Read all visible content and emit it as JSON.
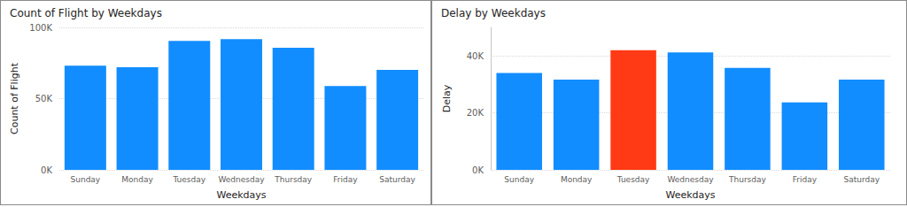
{
  "chart_data": [
    {
      "type": "bar",
      "title": "Count of Flight by Weekdays",
      "x_label": "Weekdays",
      "y_label": "Count of Flight",
      "categories": [
        "Sunday",
        "Monday",
        "Tuesday",
        "Wednesday",
        "Thursday",
        "Friday",
        "Saturday"
      ],
      "values": [
        73200,
        72000,
        90500,
        91700,
        85700,
        58900,
        70200
      ],
      "color": "#118dff",
      "ylim": [
        0,
        100000
      ],
      "yticks": [
        {
          "value": 0,
          "label": "0K"
        },
        {
          "value": 50000,
          "label": "50K"
        },
        {
          "value": 100000,
          "label": "100K"
        }
      ],
      "grid": true
    },
    {
      "type": "bar",
      "title": "Delay by Weekdays",
      "x_label": "Weekdays",
      "y_label": "Delay",
      "categories": [
        "Sunday",
        "Monday",
        "Tuesday",
        "Wednesday",
        "Thursday",
        "Friday",
        "Saturday"
      ],
      "values": [
        34000,
        31700,
        42000,
        41200,
        35800,
        23700,
        31700
      ],
      "colors": [
        "#118dff",
        "#118dff",
        "#ff3a14",
        "#118dff",
        "#118dff",
        "#118dff",
        "#118dff"
      ],
      "ylim": [
        0,
        50000
      ],
      "yticks": [
        {
          "value": 0,
          "label": "0K"
        },
        {
          "value": 20000,
          "label": "20K"
        },
        {
          "value": 40000,
          "label": "40K"
        }
      ],
      "grid": true
    }
  ]
}
